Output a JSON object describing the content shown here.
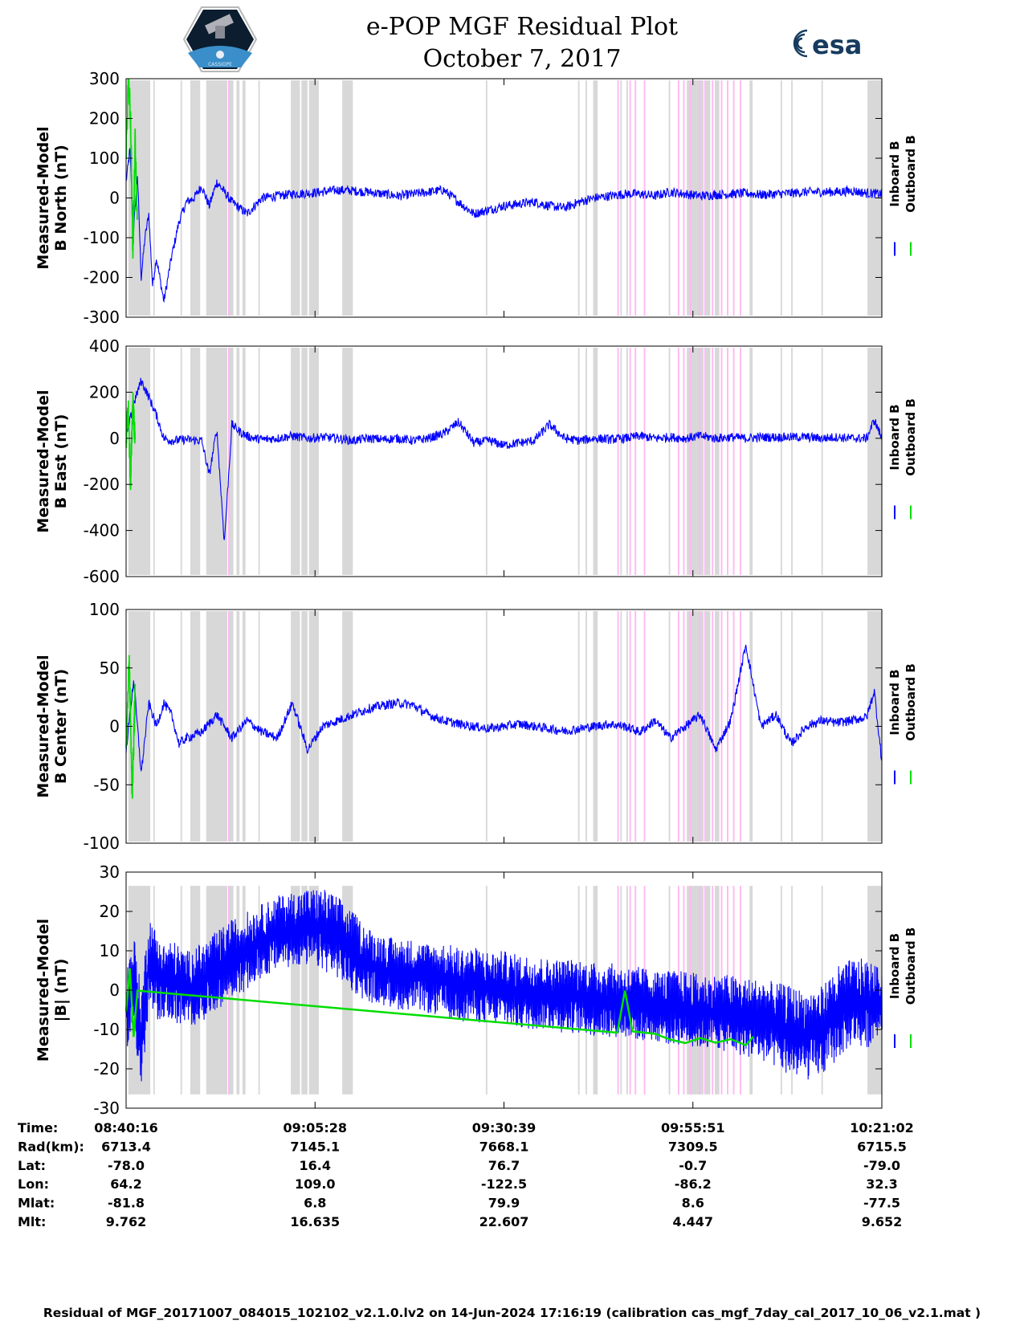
{
  "header": {
    "title": "e-POP MGF Residual Plot",
    "date": "October 7, 2017",
    "logo_left_text": "CASSIOPE",
    "logo_right_text": "esa"
  },
  "chart_data": [
    {
      "type": "line",
      "ylabel_line1": "Measured-Model",
      "ylabel_line2": "B North (nT)",
      "ylim": [
        -300,
        300
      ],
      "yticks": [
        300,
        200,
        100,
        0,
        -100,
        -200,
        -300
      ],
      "legend": [
        "Inboard B",
        "Outboard B"
      ],
      "series": [
        {
          "name": "Inboard B",
          "color": "#0000ff",
          "x": [
            0,
            0.5,
            1,
            1.5,
            2,
            2.5,
            3,
            3.5,
            4,
            5,
            6,
            7,
            8,
            9,
            10,
            11,
            12,
            14,
            16,
            18,
            20,
            22,
            24,
            26,
            28,
            30,
            32,
            34,
            36,
            38,
            40,
            42,
            44,
            46,
            48,
            50,
            52,
            54,
            56,
            58,
            60,
            62,
            64,
            66,
            68,
            70,
            72,
            74,
            76,
            78,
            80,
            82,
            84,
            86,
            88,
            90,
            92,
            94,
            96,
            98,
            100
          ],
          "y": [
            40,
            120,
            -80,
            60,
            -200,
            -100,
            -40,
            -220,
            -150,
            -260,
            -150,
            -60,
            -10,
            0,
            30,
            -20,
            40,
            -10,
            -40,
            0,
            5,
            10,
            12,
            15,
            20,
            18,
            15,
            10,
            5,
            10,
            15,
            20,
            -10,
            -40,
            -30,
            -20,
            -15,
            -10,
            -20,
            -25,
            -10,
            0,
            5,
            10,
            10,
            5,
            15,
            10,
            5,
            8,
            10,
            12,
            8,
            10,
            12,
            15,
            15,
            15,
            18,
            12,
            10
          ]
        },
        {
          "name": "Outboard B",
          "color": "#00dd00",
          "x": [
            0,
            0.3,
            0.6,
            0.9,
            1.2,
            1.5
          ],
          "y": [
            100,
            300,
            200,
            -150,
            150,
            -80
          ]
        }
      ]
    },
    {
      "type": "line",
      "ylabel_line1": "Measured-Model",
      "ylabel_line2": "B East (nT)",
      "ylim": [
        -600,
        400
      ],
      "yticks": [
        400,
        200,
        0,
        -200,
        -400,
        -600
      ],
      "legend": [
        "Inboard B",
        "Outboard B"
      ],
      "series": [
        {
          "name": "Inboard B",
          "color": "#0000ff",
          "x": [
            0,
            1,
            2,
            3,
            4,
            5,
            6,
            8,
            10,
            11,
            12,
            13,
            14,
            15,
            16,
            17,
            18,
            20,
            22,
            24,
            26,
            28,
            30,
            32,
            34,
            36,
            38,
            40,
            42,
            44,
            46,
            48,
            50,
            52,
            54,
            56,
            58,
            60,
            62,
            64,
            66,
            68,
            70,
            72,
            74,
            76,
            78,
            80,
            82,
            84,
            86,
            88,
            90,
            92,
            94,
            96,
            98,
            99,
            100
          ],
          "y": [
            0,
            150,
            250,
            180,
            100,
            0,
            -10,
            -5,
            -10,
            -160,
            40,
            -450,
            60,
            30,
            10,
            0,
            -5,
            0,
            10,
            0,
            5,
            0,
            -10,
            0,
            -5,
            0,
            -10,
            0,
            20,
            70,
            -20,
            -10,
            -30,
            -20,
            -10,
            60,
            0,
            -10,
            0,
            -5,
            0,
            10,
            0,
            5,
            0,
            10,
            0,
            5,
            0,
            5,
            5,
            5,
            5,
            0,
            5,
            0,
            0,
            80,
            0
          ]
        },
        {
          "name": "Outboard B",
          "color": "#00dd00",
          "x": [
            0,
            0.3,
            0.6,
            0.9,
            1.2
          ],
          "y": [
            0,
            120,
            -200,
            180,
            -30
          ]
        }
      ]
    },
    {
      "type": "line",
      "ylabel_line1": "Measured-Model",
      "ylabel_line2": "B Center (nT)",
      "ylim": [
        -100,
        100
      ],
      "yticks": [
        100,
        50,
        0,
        -50,
        -100
      ],
      "legend": [
        "Inboard B",
        "Outboard B"
      ],
      "series": [
        {
          "name": "Inboard B",
          "color": "#0000ff",
          "x": [
            0,
            1,
            2,
            3,
            4,
            5,
            6,
            7,
            8,
            10,
            12,
            14,
            16,
            18,
            20,
            22,
            24,
            26,
            28,
            30,
            32,
            34,
            36,
            38,
            40,
            42,
            44,
            46,
            48,
            50,
            52,
            54,
            56,
            58,
            60,
            62,
            64,
            66,
            68,
            70,
            72,
            74,
            76,
            78,
            80,
            82,
            84,
            86,
            88,
            90,
            92,
            94,
            96,
            98,
            99,
            100
          ],
          "y": [
            -20,
            40,
            -40,
            20,
            0,
            20,
            10,
            -15,
            -10,
            -5,
            10,
            -10,
            5,
            -5,
            -10,
            20,
            -20,
            0,
            5,
            10,
            15,
            18,
            20,
            18,
            10,
            5,
            2,
            0,
            -2,
            0,
            2,
            0,
            -2,
            -4,
            -2,
            0,
            2,
            0,
            -5,
            5,
            -10,
            0,
            10,
            -20,
            5,
            70,
            0,
            10,
            -15,
            0,
            5,
            3,
            5,
            8,
            30,
            -30
          ]
        },
        {
          "name": "Outboard B",
          "color": "#00dd00",
          "x": [
            0,
            0.4,
            0.8,
            1.2
          ],
          "y": [
            -20,
            60,
            -60,
            30
          ]
        }
      ]
    },
    {
      "type": "area",
      "ylabel_line1": "Measured-Model",
      "ylabel_line2": "|B| (nT)",
      "ylim": [
        -30,
        30
      ],
      "yticks": [
        30,
        20,
        10,
        0,
        -10,
        -20,
        -30
      ],
      "legend": [
        "Inboard B",
        "Outboard B"
      ],
      "series": [
        {
          "name": "Inboard B upper envelope",
          "color": "#0000ff",
          "x": [
            0,
            1,
            2,
            3,
            4,
            5,
            6,
            8,
            10,
            12,
            14,
            16,
            18,
            20,
            22,
            24,
            26,
            28,
            30,
            32,
            34,
            36,
            38,
            40,
            42,
            44,
            46,
            48,
            50,
            52,
            54,
            56,
            58,
            60,
            62,
            64,
            66,
            68,
            70,
            72,
            74,
            76,
            78,
            80,
            82,
            84,
            86,
            88,
            90,
            92,
            94,
            96,
            98,
            100
          ],
          "y": [
            5,
            15,
            0,
            20,
            15,
            12,
            13,
            10,
            12,
            15,
            18,
            20,
            22,
            24,
            25,
            26,
            26,
            24,
            20,
            16,
            14,
            13,
            13,
            12,
            12,
            11,
            11,
            10,
            10,
            9,
            9,
            8,
            8,
            8,
            7,
            7,
            6,
            6,
            5,
            5,
            5,
            4,
            4,
            4,
            3,
            3,
            2,
            1,
            0,
            1,
            6,
            8,
            8,
            5
          ]
        },
        {
          "name": "Inboard B lower envelope",
          "color": "#0000ff",
          "x": [
            0,
            1,
            2,
            3,
            4,
            5,
            6,
            8,
            10,
            12,
            14,
            16,
            18,
            20,
            22,
            24,
            26,
            28,
            30,
            32,
            34,
            36,
            38,
            40,
            42,
            44,
            46,
            48,
            50,
            52,
            54,
            56,
            58,
            60,
            62,
            64,
            66,
            68,
            70,
            72,
            74,
            76,
            78,
            80,
            82,
            84,
            86,
            88,
            90,
            92,
            94,
            96,
            98,
            100
          ],
          "y": [
            -15,
            -10,
            -27,
            -5,
            -8,
            -7,
            -8,
            -10,
            -8,
            -5,
            -2,
            0,
            3,
            5,
            6,
            6,
            5,
            3,
            -1,
            -3,
            -4,
            -5,
            -5,
            -6,
            -7,
            -8,
            -8,
            -9,
            -9,
            -10,
            -10,
            -10,
            -11,
            -11,
            -12,
            -12,
            -12,
            -13,
            -13,
            -14,
            -14,
            -15,
            -15,
            -16,
            -17,
            -18,
            -20,
            -22,
            -23,
            -22,
            -18,
            -14,
            -15,
            -10
          ]
        },
        {
          "name": "Outboard B",
          "color": "#00dd00",
          "x": [
            0,
            0.5,
            1,
            1.5,
            65,
            66,
            67,
            70,
            72,
            74,
            76,
            78,
            80,
            82,
            83
          ],
          "y": [
            -5,
            5,
            -12,
            0,
            -10,
            -1,
            -11,
            -12,
            -12,
            -13,
            -12,
            -14,
            -12,
            -13,
            -12
          ]
        }
      ]
    }
  ],
  "time_axis": {
    "x_ticks_pct": [
      0,
      25,
      50,
      75,
      100
    ],
    "rows": [
      {
        "label": "Time:",
        "values": [
          "08:40:16",
          "09:05:28",
          "09:30:39",
          "09:55:51",
          "10:21:02"
        ]
      },
      {
        "label": "Rad(km):",
        "values": [
          "6713.4",
          "7145.1",
          "7668.1",
          "7309.5",
          "6715.5"
        ]
      },
      {
        "label": "Lat:",
        "values": [
          "-78.0",
          "16.4",
          "76.7",
          "-0.7",
          "-79.0"
        ]
      },
      {
        "label": "Lon:",
        "values": [
          "64.2",
          "109.0",
          "-122.5",
          "-86.2",
          "32.3"
        ]
      },
      {
        "label": "Mlat:",
        "values": [
          "-81.8",
          "6.8",
          "79.9",
          "8.6",
          "-77.5"
        ]
      },
      {
        "label": "Mlt:",
        "values": [
          "9.762",
          "16.635",
          "22.607",
          "4.447",
          "9.652"
        ]
      }
    ]
  },
  "footer": {
    "text": "Residual of MGF_20171007_084015_102102_v2.1.0.lv2 on 14-Jun-2024 17:16:19 (calibration cas_mgf_7day_cal_2017_10_06_v2.1.mat )"
  },
  "colors": {
    "inboard": "#0000ff",
    "outboard": "#00dd00",
    "gray_band": "#d8d8d8",
    "pink_band": "#ffb8f2"
  },
  "bands_pct": {
    "gray": [
      [
        0.3,
        3.2
      ],
      [
        3.6,
        3.8
      ],
      [
        7.2,
        7.4
      ],
      [
        8.5,
        9.8
      ],
      [
        10.6,
        13.4
      ],
      [
        13.6,
        14.2
      ],
      [
        14.6,
        15.0
      ],
      [
        15.4,
        15.8
      ],
      [
        17.5,
        17.7
      ],
      [
        21.8,
        23.0
      ],
      [
        23.2,
        24.0
      ],
      [
        24.2,
        25.5
      ],
      [
        28.6,
        30.0
      ],
      [
        47.6,
        47.8
      ],
      [
        59.8,
        60.0
      ],
      [
        60.8,
        61.0
      ],
      [
        61.8,
        62.4
      ],
      [
        65.4,
        65.6
      ],
      [
        66.2,
        66.4
      ],
      [
        71.8,
        72.0
      ],
      [
        74.2,
        76.4
      ],
      [
        76.7,
        77.3
      ],
      [
        77.9,
        78.5
      ],
      [
        82.5,
        82.9
      ],
      [
        86.6,
        86.8
      ],
      [
        88.0,
        88.2
      ],
      [
        92.0,
        92.2
      ],
      [
        98.1,
        100
      ]
    ],
    "pink": [
      [
        13.5,
        13.7
      ],
      [
        65.0,
        65.2
      ],
      [
        66.6,
        66.8
      ],
      [
        67.3,
        67.5
      ],
      [
        68.5,
        68.7
      ],
      [
        73.0,
        73.2
      ],
      [
        73.7,
        73.9
      ],
      [
        74.6,
        74.8
      ],
      [
        75.8,
        76.0
      ],
      [
        76.5,
        76.7
      ],
      [
        77.5,
        77.7
      ],
      [
        78.7,
        78.9
      ],
      [
        79.5,
        79.7
      ],
      [
        80.3,
        80.5
      ],
      [
        81.2,
        81.4
      ]
    ]
  }
}
